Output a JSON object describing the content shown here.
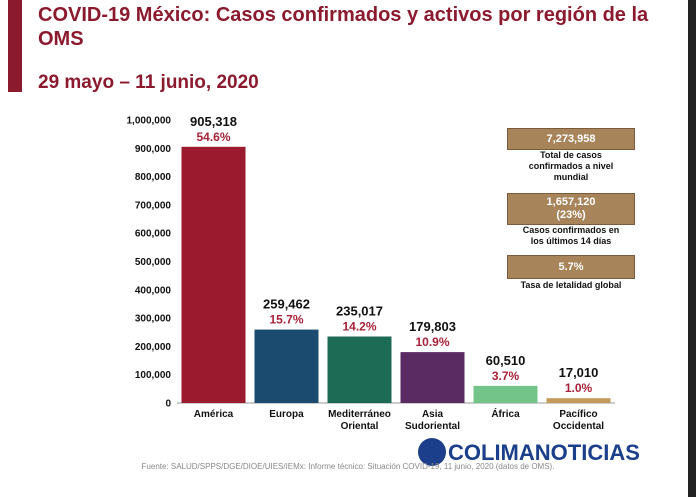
{
  "chart_data": {
    "type": "bar",
    "title": "COVID-19 México: Casos confirmados y activos por región de la OMS",
    "subtitle": "29 mayo – 11 junio, 2020",
    "categories": [
      "América",
      "Europa",
      "Mediterráneo\nOriental",
      "Asia\nSudoriental",
      "África",
      "Pacífico\nOccidental"
    ],
    "values": [
      905318,
      259462,
      235017,
      179803,
      60510,
      17010
    ],
    "value_labels": [
      "905,318",
      "259,462",
      "235,017",
      "179,803",
      "60,510",
      "17,010"
    ],
    "share_labels": [
      "54.6%",
      "15.7%",
      "14.2%",
      "10.9%",
      "3.7%",
      "1.0%"
    ],
    "colors": [
      "#9c1a2e",
      "#1b4b6e",
      "#1d6b55",
      "#5a2a63",
      "#73c489",
      "#c49a5a"
    ],
    "share_color": "#a8223a",
    "ylim": [
      0,
      1000000
    ],
    "yticks": [
      0,
      {
        "value": 100000,
        "label": "100,000"
      },
      {
        "value": 200000,
        "label": "200,000"
      },
      {
        "value": 300000,
        "label": "300,000"
      },
      {
        "value": 400000,
        "label": "400,000"
      },
      {
        "value": 500000,
        "label": "500,000"
      },
      {
        "value": 600000,
        "label": "600,000"
      },
      {
        "value": 700000,
        "label": "700,000"
      },
      {
        "value": 800000,
        "label": "800,000"
      },
      {
        "value": 900000,
        "label": "900,000"
      },
      {
        "value": 1000000,
        "label": "1,000,000"
      }
    ]
  },
  "info_boxes": [
    {
      "figure": "7,273,958",
      "text": "Total de casos\nconfirmados a nivel\nmundial"
    },
    {
      "figure": "1,657,120\n(23%)",
      "text": "Casos confirmados en\nlos últimos 14 días"
    },
    {
      "figure": "5.7%",
      "text": "Tasa de letalidad global"
    }
  ],
  "source": "Fuente: SALUD/SPPS/DGE/DIOE/UIES/IEMx: Informe técnico: Situación COVID-19, 11 junio, 2020 (datos de OMS).",
  "watermark": "COLIMANOTICIAS"
}
